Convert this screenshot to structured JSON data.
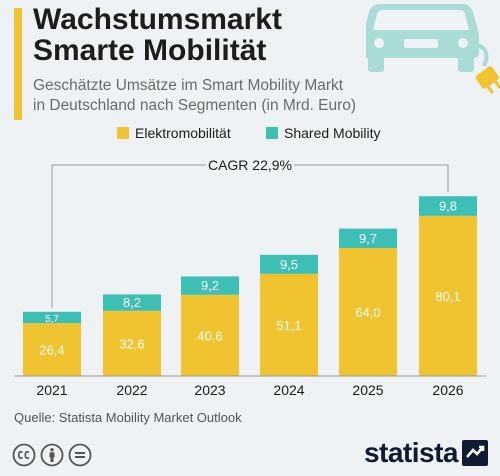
{
  "header": {
    "title_line1": "Wachstumsmarkt",
    "title_line2": "Smarte Mobilität",
    "subtitle_line1": "Geschätzte Umsätze im Smart Mobility Markt",
    "subtitle_line2": "in Deutschland nach Segmenten (in Mrd. Euro)"
  },
  "icons": {
    "header_illustration": "electric-car-icon",
    "license_icons": [
      "cc-icon",
      "attribution-icon",
      "no-derivatives-icon"
    ],
    "brand_mark": "statista-logo-icon"
  },
  "colors": {
    "background": "#eef2f4",
    "accent": "#f0c330",
    "electro": "#f0c330",
    "shared": "#3dbfb5",
    "car": "#a9dcd7"
  },
  "chart_data": {
    "type": "bar",
    "stacked": true,
    "categories": [
      "2021",
      "2022",
      "2023",
      "2024",
      "2025",
      "2026"
    ],
    "series": [
      {
        "name": "Elektromobilität",
        "values": [
          26.4,
          32.6,
          40.6,
          51.1,
          64.0,
          80.1
        ],
        "labels": [
          "26,4",
          "32,6",
          "40,6",
          "51,1",
          "64,0",
          "80,1"
        ]
      },
      {
        "name": "Shared Mobility",
        "values": [
          5.7,
          8.2,
          9.2,
          9.5,
          9.7,
          9.8
        ],
        "labels": [
          "5,7",
          "8,2",
          "9,2",
          "9,5",
          "9,7",
          "9,8"
        ]
      }
    ],
    "annotation": "CAGR 22,9%",
    "legend_position": "top",
    "grid": false,
    "ylim": [
      0,
      90
    ]
  },
  "footer": {
    "source": "Quelle: Statista Mobility Market Outlook",
    "brand": "statista"
  }
}
